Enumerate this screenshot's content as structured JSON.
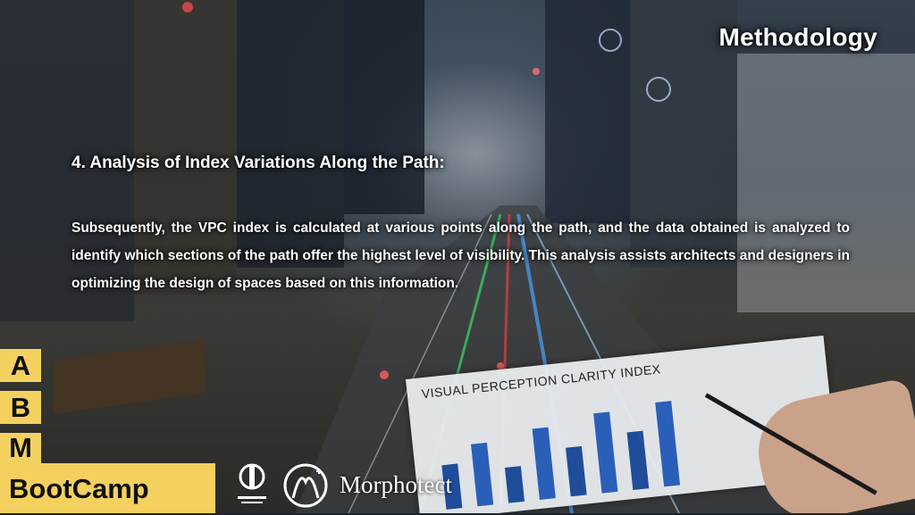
{
  "header": {
    "section_title": "Methodology"
  },
  "content": {
    "heading": "4. Analysis of Index Variations Along the Path:",
    "paragraph": "Subsequently, the VPC index is calculated at various points along the path, and the data obtained is analyzed to identify which sections of the path offer the highest level of visibility. This analysis assists architects and designers in optimizing the design of spaces based on this information."
  },
  "background": {
    "chart_title": "VISUAL PERCEPTION CLARITY INDEX"
  },
  "branding": {
    "abm_letters": [
      "A",
      "B",
      "M"
    ],
    "bootcamp": "BootCamp",
    "partner": "Morphotect"
  },
  "colors": {
    "badge": "#f4d15f",
    "text": "#ffffff"
  },
  "icons": [
    "university-logo",
    "morphotect-logo"
  ]
}
